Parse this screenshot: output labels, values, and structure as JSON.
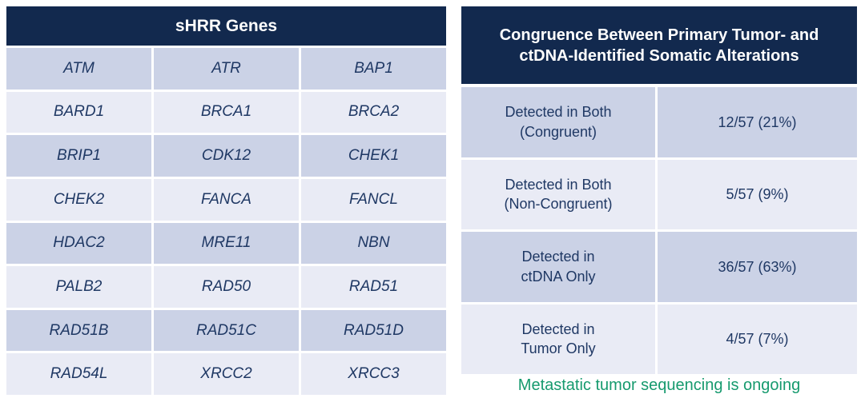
{
  "colors": {
    "navy": "#12294e",
    "headerText": "#ffffff",
    "ink": "#1f3864",
    "rowDark": "#cbd2e6",
    "rowLight": "#e9ebf5",
    "green": "#169a6e"
  },
  "left_table": {
    "title": "sHRR Genes",
    "rows": [
      [
        "ATM",
        "ATR",
        "BAP1"
      ],
      [
        "BARD1",
        "BRCA1",
        "BRCA2"
      ],
      [
        "BRIP1",
        "CDK12",
        "CHEK1"
      ],
      [
        "CHEK2",
        "FANCA",
        "FANCL"
      ],
      [
        "HDAC2",
        "MRE11",
        "NBN"
      ],
      [
        "PALB2",
        "RAD50",
        "RAD51"
      ],
      [
        "RAD51B",
        "RAD51C",
        "RAD51D"
      ],
      [
        "RAD54L",
        "XRCC2",
        "XRCC3"
      ]
    ]
  },
  "right_table": {
    "title": "Congruence Between Primary Tumor- and\nctDNA-Identified Somatic Alterations",
    "rows": [
      {
        "label": "Detected in Both\n(Congruent)",
        "value": "12/57 (21%)"
      },
      {
        "label": "Detected in Both\n(Non-Congruent)",
        "value": "5/57 (9%)"
      },
      {
        "label": "Detected in\nctDNA Only",
        "value": "36/57 (63%)"
      },
      {
        "label": "Detected in\nTumor Only",
        "value": "4/57 (7%)"
      }
    ]
  },
  "footnote": "Metastatic tumor sequencing is ongoing"
}
